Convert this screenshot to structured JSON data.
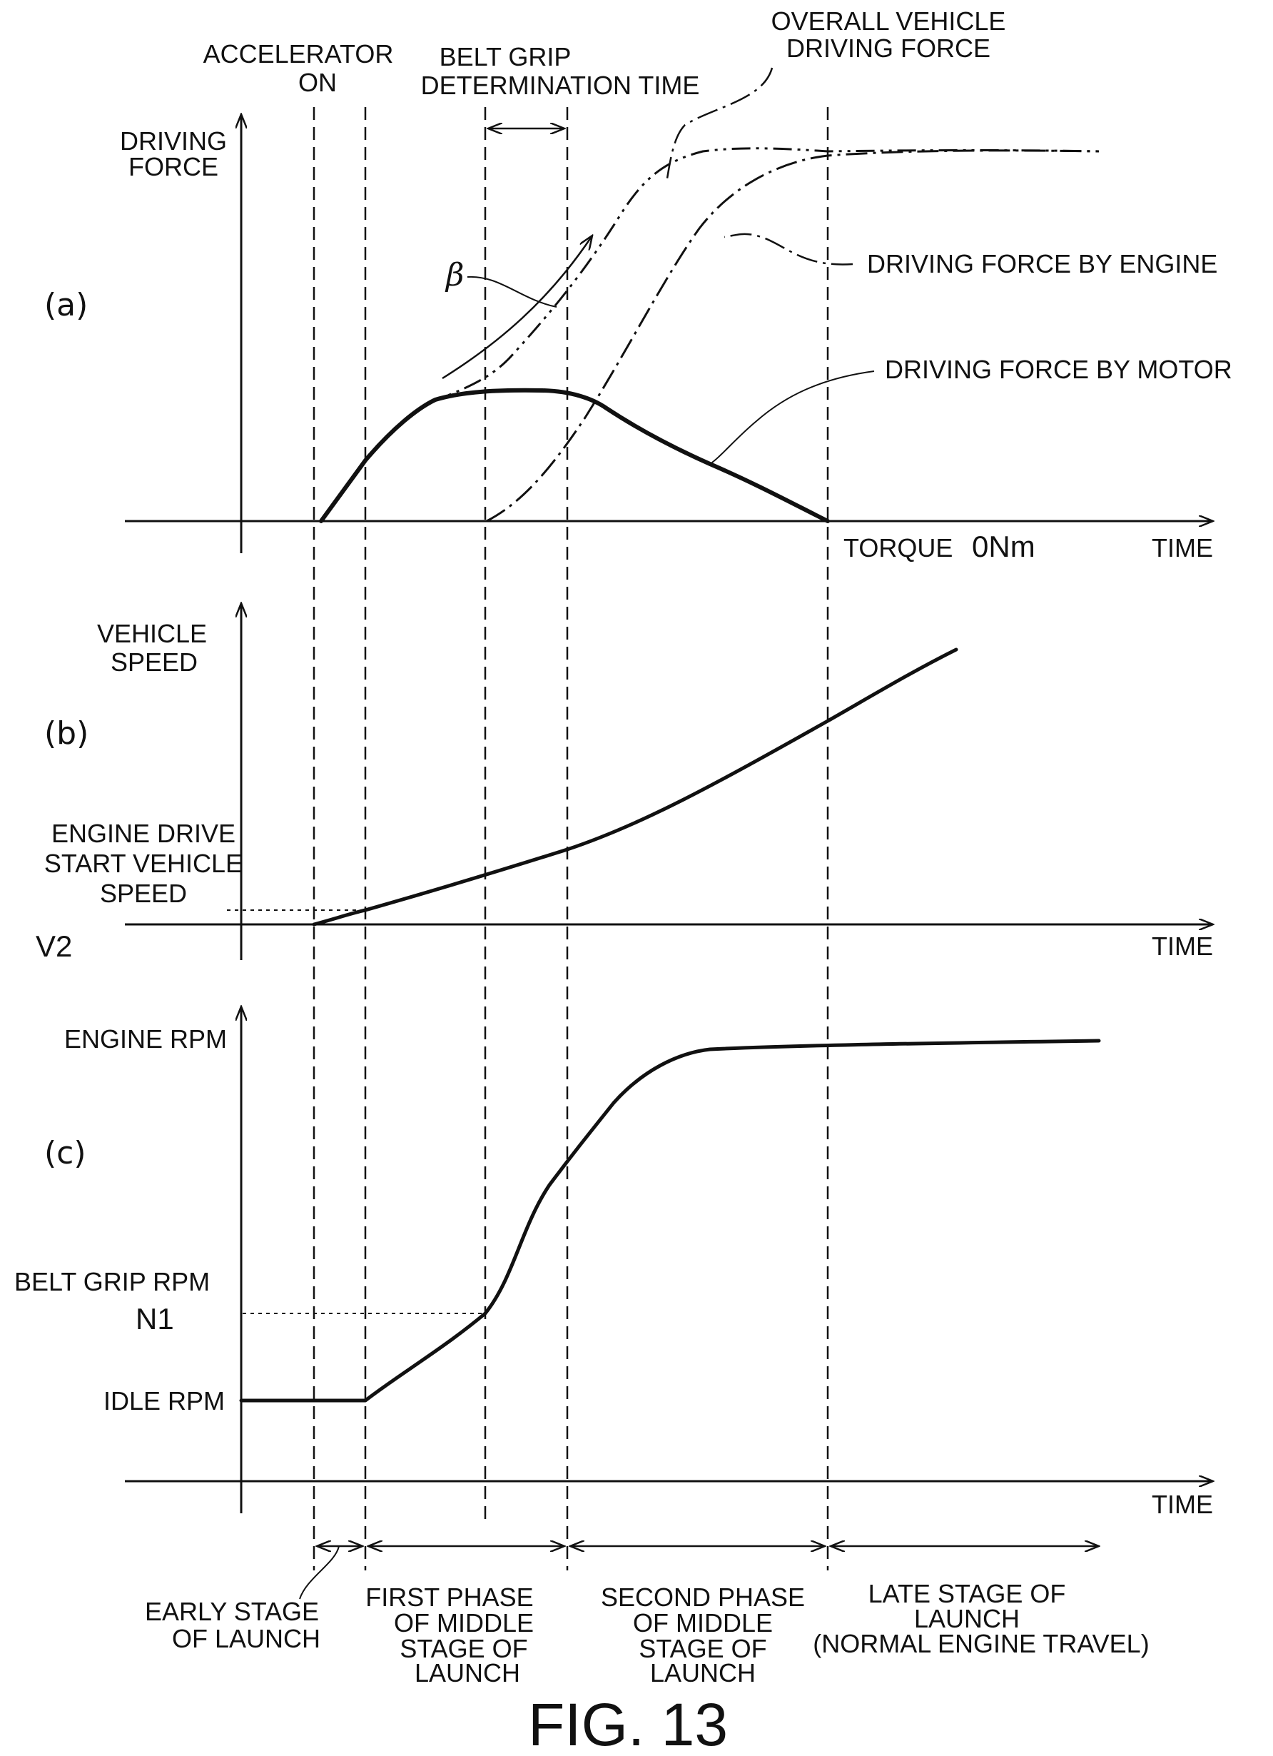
{
  "figure_label": "FIG. 13",
  "panels": {
    "a": {
      "tag": "(a)",
      "y_axis_label": [
        "DRIVING",
        "FORCE"
      ],
      "x_axis_label": "TIME",
      "torque_note": "TORQUE",
      "torque_value": "0Nm",
      "curve_labels": {
        "overall": [
          "OVERALL VEHICLE",
          "DRIVING FORCE"
        ],
        "engine": "DRIVING FORCE BY ENGINE",
        "motor": "DRIVING FORCE BY MOTOR",
        "beta": "β"
      }
    },
    "b": {
      "tag": "(b)",
      "y_axis_label": [
        "VEHICLE",
        "SPEED"
      ],
      "x_axis_label": "TIME",
      "ref_label": [
        "ENGINE DRIVE",
        "START VEHICLE",
        "SPEED"
      ],
      "ref_value": "V2"
    },
    "c": {
      "tag": "(c)",
      "y_axis_label": "ENGINE RPM",
      "x_axis_label": "TIME",
      "belt_grip_label": "BELT GRIP RPM",
      "belt_grip_value": "N1",
      "idle_label": "IDLE RPM"
    }
  },
  "top_labels": {
    "accelerator": [
      "ACCELERATOR",
      "ON"
    ],
    "belt_grip": [
      "BELT GRIP",
      "DETERMINATION TIME"
    ]
  },
  "stages": [
    {
      "lines": [
        "EARLY STAGE",
        "OF LAUNCH"
      ]
    },
    {
      "lines": [
        "FIRST PHASE",
        "OF MIDDLE",
        "STAGE OF",
        "LAUNCH"
      ]
    },
    {
      "lines": [
        "SECOND PHASE",
        "OF MIDDLE",
        "STAGE OF",
        "LAUNCH"
      ]
    },
    {
      "lines": [
        "LATE STAGE OF",
        "LAUNCH",
        "(NORMAL ENGINE TRAVEL)"
      ]
    }
  ]
}
